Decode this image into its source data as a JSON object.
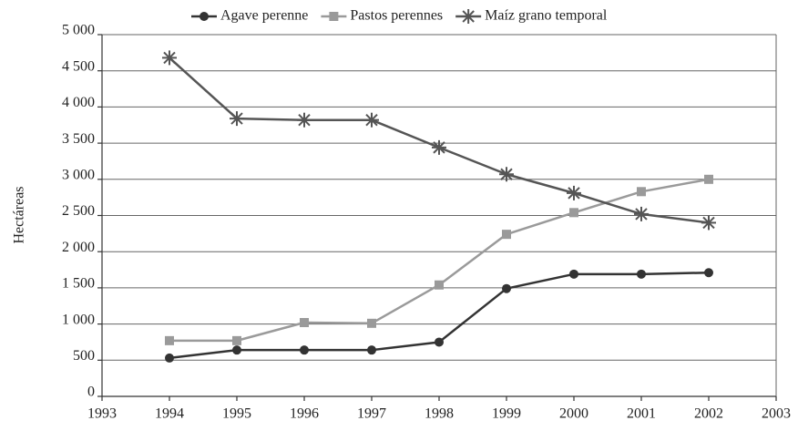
{
  "chart_data": {
    "type": "line",
    "y_label": "Hectáreas",
    "x": [
      1994,
      1995,
      1996,
      1997,
      1998,
      1999,
      2000,
      2001,
      2002
    ],
    "series": [
      {
        "name": "Agave perenne",
        "color": "#333333",
        "marker": "circle",
        "values": [
          530,
          640,
          640,
          640,
          750,
          1490,
          1690,
          1690,
          1710
        ]
      },
      {
        "name": "Pastos perennes",
        "color": "#9a9a9a",
        "marker": "square",
        "values": [
          770,
          770,
          1020,
          1010,
          1540,
          2240,
          2540,
          2830,
          3000
        ]
      },
      {
        "name": "Maíz grano temporal",
        "color": "#555555",
        "marker": "asterisk",
        "values": [
          4680,
          3840,
          3820,
          3820,
          3440,
          3070,
          2810,
          2520,
          2400
        ]
      }
    ],
    "xlim": [
      1993,
      2003
    ],
    "xticks": [
      1993,
      1994,
      1995,
      1996,
      1997,
      1998,
      1999,
      2000,
      2001,
      2002,
      2003
    ],
    "ylim": [
      0,
      5000
    ],
    "yticks": [
      0,
      500,
      {
        "value": 1000,
        "label": "1 000"
      },
      {
        "value": 1500,
        "label": "1 500"
      },
      {
        "value": 2000,
        "label": "2 000"
      },
      {
        "value": 2500,
        "label": "2 500"
      },
      {
        "value": 3000,
        "label": "3 000"
      },
      {
        "value": 3500,
        "label": "3 500"
      },
      {
        "value": 4000,
        "label": "4 000"
      },
      {
        "value": 4500,
        "label": "4 500"
      },
      {
        "value": 5000,
        "label": "5 000"
      }
    ],
    "grid": true,
    "legend": "top"
  }
}
